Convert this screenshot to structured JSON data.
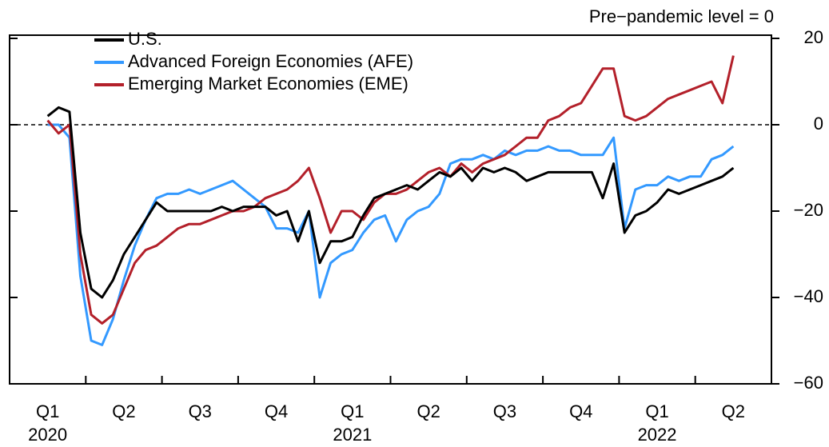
{
  "chart_data": {
    "type": "line",
    "annotation": "Pre−pandemic level = 0",
    "reference_line": 0,
    "categories": [
      null,
      null,
      null,
      "Q1",
      null,
      null,
      null,
      null,
      null,
      null,
      "Q2",
      null,
      null,
      null,
      null,
      null,
      null,
      "Q3",
      null,
      null,
      null,
      null,
      null,
      null,
      "Q4",
      null,
      null,
      null,
      null,
      null,
      null,
      "Q1",
      null,
      null,
      null,
      null,
      null,
      null,
      "Q2",
      null,
      null,
      null,
      null,
      null,
      null,
      "Q3",
      null,
      null,
      null,
      null,
      null,
      null,
      "Q4",
      null,
      null,
      null,
      null,
      null,
      null,
      "Q1",
      null,
      null,
      null,
      null,
      null,
      null,
      "Q2",
      null,
      null,
      null
    ],
    "years": [
      null,
      null,
      null,
      "2020",
      null,
      null,
      null,
      null,
      null,
      null,
      null,
      null,
      null,
      null,
      null,
      null,
      null,
      null,
      null,
      null,
      null,
      null,
      null,
      null,
      null,
      null,
      null,
      null,
      null,
      null,
      null,
      "2021",
      null,
      null,
      null,
      null,
      null,
      null,
      null,
      null,
      null,
      null,
      null,
      null,
      null,
      null,
      null,
      null,
      null,
      null,
      null,
      null,
      null,
      null,
      null,
      null,
      null,
      null,
      null,
      "2022",
      null,
      null,
      null,
      null,
      null,
      null,
      null,
      null,
      null,
      null
    ],
    "series": [
      {
        "name": "U.S.",
        "color": "#000000",
        "values": [
          null,
          null,
          null,
          2,
          4,
          3,
          -25,
          -38,
          -40,
          -36,
          -30,
          -26,
          -22,
          -18,
          -20,
          -20,
          -20,
          -20,
          -20,
          -19,
          -20,
          -19,
          -19,
          -19,
          -21,
          -20,
          -27,
          -20,
          -32,
          -27,
          -27,
          -26,
          -21,
          -17,
          -16,
          -15,
          -14,
          -15,
          -13,
          -11,
          -12,
          -10,
          -13,
          -10,
          -11,
          -10,
          -11,
          -13,
          -12,
          -11,
          -11,
          -11,
          -11,
          -11,
          -17,
          -9,
          -25,
          -21,
          -20,
          -18,
          -15,
          -16,
          -15,
          -14,
          -13,
          -12,
          -10,
          null,
          null,
          null
        ]
      },
      {
        "name": "Advanced Foreign Economies (AFE)",
        "color": "#3399ff",
        "values": [
          null,
          null,
          null,
          0,
          0,
          -3,
          -35,
          -50,
          -51,
          -45,
          -36,
          -28,
          -22,
          -17,
          -16,
          -16,
          -15,
          -16,
          -15,
          -14,
          -13,
          -15,
          -17,
          -19,
          -24,
          -24,
          -25,
          -20,
          -40,
          -32,
          -30,
          -29,
          -25,
          -22,
          -21,
          -27,
          -22,
          -20,
          -19,
          -16,
          -9,
          -8,
          -8,
          -7,
          -8,
          -6,
          -7,
          -6,
          -6,
          -5,
          -6,
          -6,
          -7,
          -7,
          -7,
          -3,
          -24,
          -15,
          -14,
          -14,
          -12,
          -13,
          -12,
          -12,
          -8,
          -7,
          -5,
          null,
          null,
          null
        ]
      },
      {
        "name": "Emerging Market Economies (EME)",
        "color": "#b3202a",
        "values": [
          null,
          null,
          null,
          1,
          -2,
          0,
          -30,
          -44,
          -46,
          -44,
          -38,
          -32,
          -29,
          -28,
          -26,
          -24,
          -23,
          -23,
          -22,
          -21,
          -20,
          -20,
          -19,
          -17,
          -16,
          -15,
          -13,
          -10,
          -17,
          -25,
          -20,
          -20,
          -22,
          -18,
          -16,
          -16,
          -15,
          -13,
          -11,
          -10,
          -12,
          -9,
          -11,
          -9,
          -8,
          -7,
          -5,
          -3,
          -3,
          1,
          2,
          4,
          5,
          9,
          13,
          13,
          2,
          1,
          2,
          4,
          6,
          7,
          8,
          9,
          10,
          5,
          16,
          null,
          null,
          null
        ]
      }
    ],
    "ylim": [
      -60,
      20
    ],
    "yticks": [
      {
        "value": -60,
        "label": "−60"
      },
      {
        "value": -40,
        "label": "−40"
      },
      {
        "value": -20,
        "label": "−20"
      },
      0,
      20
    ]
  }
}
